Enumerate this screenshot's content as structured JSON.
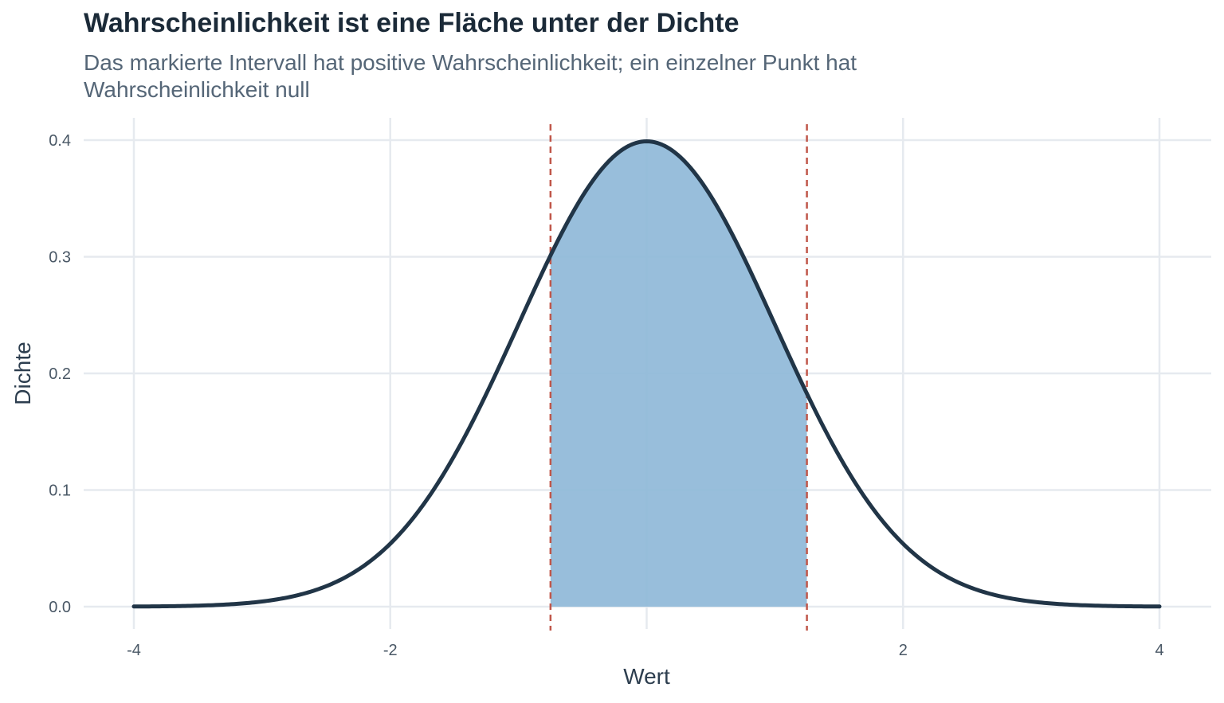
{
  "title": "Wahrscheinlichkeit ist eine Fläche unter der Dichte",
  "subtitle": "Das markierte Intervall hat positive Wahrscheinlichkeit; ein einzelner Punkt hat Wahrscheinlichkeit null",
  "colors": {
    "curve": "#213547",
    "fill": "#8fb8d8",
    "interval_lines": "#c0574a",
    "grid": "#e6eaef",
    "text": "#4a5866"
  },
  "chart_data": {
    "type": "area",
    "distribution": "standard normal density",
    "xlabel": "Wert",
    "ylabel": "Dichte",
    "xlim": [
      -4,
      4
    ],
    "ylim": [
      0,
      0.4
    ],
    "x_ticks": [
      -4,
      -2,
      2,
      4
    ],
    "x_tick_labels": [
      "-4",
      "-2",
      "2",
      "4"
    ],
    "y_ticks": [
      0,
      0.1,
      0.2,
      0.3,
      0.4
    ],
    "y_tick_labels": [
      "0.0",
      "0.1",
      "0.2",
      "0.3",
      "0.4"
    ],
    "x_gridlines": [
      -4,
      -2,
      0,
      2,
      4
    ],
    "y_gridlines": [
      0,
      0.1,
      0.2,
      0.3,
      0.4
    ],
    "grid": true,
    "shaded_interval": [
      -0.75,
      1.25
    ],
    "vertical_lines": [
      -0.75,
      1.25
    ],
    "series": [
      {
        "x": [
          -4,
          -3.5,
          -3,
          -2.5,
          -2,
          -1.5,
          -1,
          -0.75,
          -0.5,
          0,
          0.5,
          1,
          1.25,
          1.5,
          2,
          2.5,
          3,
          3.5,
          4
        ],
        "y": [
          0.0001,
          0.0009,
          0.0044,
          0.0175,
          0.054,
          0.1295,
          0.242,
          0.3011,
          0.3521,
          0.3989,
          0.3521,
          0.242,
          0.1826,
          0.1295,
          0.054,
          0.0175,
          0.0044,
          0.0009,
          0.0001
        ]
      }
    ]
  }
}
